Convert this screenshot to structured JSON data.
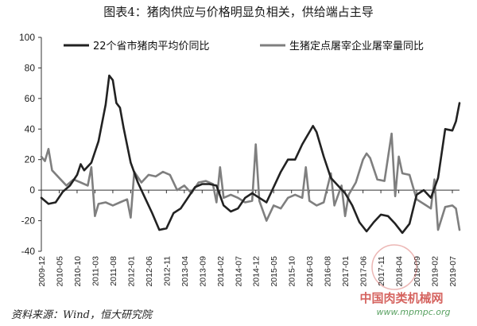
{
  "chart_data": {
    "type": "line",
    "title": "图表4：猪肉供应与价格明显负相关，供给端占主导",
    "ylim": [
      -40,
      100
    ],
    "yticks": [
      -40,
      -20,
      0,
      20,
      40,
      60,
      80,
      100
    ],
    "x_start": "2009-12",
    "x_end": "2019-09",
    "xtick_labels": [
      "2009-12",
      "2010-05",
      "2010-10",
      "2011-03",
      "2011-08",
      "2012-01",
      "2012-06",
      "2012-11",
      "2013-04",
      "2013-09",
      "2014-02",
      "2014-07",
      "2014-12",
      "2015-05",
      "2015-10",
      "2016-03",
      "2016-08",
      "2017-01",
      "2017-06",
      "2017-11",
      "2018-04",
      "2018-09",
      "2019-02",
      "2019-07"
    ],
    "legend_position": "top",
    "grid": false,
    "series": [
      {
        "name": "22个省市猪肉平均价同比",
        "color": "#222222",
        "points": [
          [
            "2009-12",
            -5
          ],
          [
            "2010-02",
            -9
          ],
          [
            "2010-04",
            -8
          ],
          [
            "2010-06",
            -1
          ],
          [
            "2010-08",
            3
          ],
          [
            "2010-10",
            10
          ],
          [
            "2010-11",
            17
          ],
          [
            "2010-12",
            13
          ],
          [
            "2011-02",
            18
          ],
          [
            "2011-04",
            32
          ],
          [
            "2011-06",
            56
          ],
          [
            "2011-07",
            75
          ],
          [
            "2011-08",
            72
          ],
          [
            "2011-09",
            57
          ],
          [
            "2011-10",
            54
          ],
          [
            "2011-11",
            41
          ],
          [
            "2012-01",
            18
          ],
          [
            "2012-03",
            5
          ],
          [
            "2012-05",
            -5
          ],
          [
            "2012-07",
            -15
          ],
          [
            "2012-09",
            -26
          ],
          [
            "2012-11",
            -25
          ],
          [
            "2013-01",
            -15
          ],
          [
            "2013-03",
            -12
          ],
          [
            "2013-05",
            -5
          ],
          [
            "2013-07",
            2
          ],
          [
            "2013-09",
            4
          ],
          [
            "2013-11",
            4
          ],
          [
            "2014-01",
            3
          ],
          [
            "2014-03",
            -10
          ],
          [
            "2014-05",
            -14
          ],
          [
            "2014-07",
            -12
          ],
          [
            "2014-09",
            -5
          ],
          [
            "2014-11",
            -2
          ],
          [
            "2015-01",
            -5
          ],
          [
            "2015-03",
            -8
          ],
          [
            "2015-04",
            -3
          ],
          [
            "2015-05",
            2
          ],
          [
            "2015-07",
            12
          ],
          [
            "2015-09",
            20
          ],
          [
            "2015-11",
            20
          ],
          [
            "2016-01",
            30
          ],
          [
            "2016-03",
            38
          ],
          [
            "2016-04",
            42
          ],
          [
            "2016-05",
            38
          ],
          [
            "2016-07",
            22
          ],
          [
            "2016-09",
            8
          ],
          [
            "2016-11",
            3
          ],
          [
            "2017-01",
            -2
          ],
          [
            "2017-03",
            -10
          ],
          [
            "2017-05",
            -21
          ],
          [
            "2017-07",
            -27
          ],
          [
            "2017-09",
            -21
          ],
          [
            "2017-11",
            -16
          ],
          [
            "2018-01",
            -17
          ],
          [
            "2018-03",
            -22
          ],
          [
            "2018-05",
            -28
          ],
          [
            "2018-07",
            -22
          ],
          [
            "2018-09",
            -3
          ],
          [
            "2018-11",
            0
          ],
          [
            "2019-01",
            -5
          ],
          [
            "2019-03",
            8
          ],
          [
            "2019-05",
            40
          ],
          [
            "2019-07",
            39
          ],
          [
            "2019-08",
            45
          ],
          [
            "2019-09",
            57
          ]
        ]
      },
      {
        "name": "生猪定点屠宰企业屠宰量同比",
        "color": "#7f7f7f",
        "points": [
          [
            "2009-12",
            22
          ],
          [
            "2010-01",
            19
          ],
          [
            "2010-02",
            27
          ],
          [
            "2010-03",
            13
          ],
          [
            "2010-05",
            8
          ],
          [
            "2010-07",
            3
          ],
          [
            "2010-09",
            7
          ],
          [
            "2010-11",
            5
          ],
          [
            "2011-01",
            3
          ],
          [
            "2011-02",
            15
          ],
          [
            "2011-03",
            -17
          ],
          [
            "2011-04",
            -9
          ],
          [
            "2011-06",
            -8
          ],
          [
            "2011-08",
            -10
          ],
          [
            "2011-10",
            -8
          ],
          [
            "2011-12",
            -6
          ],
          [
            "2012-01",
            -18
          ],
          [
            "2012-02",
            12
          ],
          [
            "2012-04",
            5
          ],
          [
            "2012-06",
            10
          ],
          [
            "2012-08",
            9
          ],
          [
            "2012-10",
            12
          ],
          [
            "2012-12",
            10
          ],
          [
            "2013-02",
            0
          ],
          [
            "2013-04",
            3
          ],
          [
            "2013-06",
            -2
          ],
          [
            "2013-08",
            5
          ],
          [
            "2013-10",
            6
          ],
          [
            "2013-12",
            4
          ],
          [
            "2014-01",
            -8
          ],
          [
            "2014-02",
            15
          ],
          [
            "2014-03",
            -5
          ],
          [
            "2014-05",
            -3
          ],
          [
            "2014-07",
            -5
          ],
          [
            "2014-09",
            -8
          ],
          [
            "2014-11",
            -7
          ],
          [
            "2014-12",
            30
          ],
          [
            "2015-01",
            -7
          ],
          [
            "2015-03",
            -20
          ],
          [
            "2015-05",
            -10
          ],
          [
            "2015-07",
            -12
          ],
          [
            "2015-09",
            -5
          ],
          [
            "2015-11",
            -3
          ],
          [
            "2016-01",
            -5
          ],
          [
            "2016-02",
            15
          ],
          [
            "2016-03",
            -7
          ],
          [
            "2016-05",
            -10
          ],
          [
            "2016-07",
            -8
          ],
          [
            "2016-09",
            11
          ],
          [
            "2016-10",
            -10
          ],
          [
            "2016-12",
            3
          ],
          [
            "2017-01",
            -17
          ],
          [
            "2017-02",
            -3
          ],
          [
            "2017-04",
            5
          ],
          [
            "2017-06",
            20
          ],
          [
            "2017-07",
            24
          ],
          [
            "2017-08",
            21
          ],
          [
            "2017-10",
            7
          ],
          [
            "2017-12",
            6
          ],
          [
            "2018-02",
            37
          ],
          [
            "2018-03",
            -4
          ],
          [
            "2018-04",
            22
          ],
          [
            "2018-05",
            11
          ],
          [
            "2018-07",
            10
          ],
          [
            "2018-09",
            -6
          ],
          [
            "2018-11",
            -9
          ],
          [
            "2019-01",
            -12
          ],
          [
            "2019-02",
            7
          ],
          [
            "2019-03",
            -26
          ],
          [
            "2019-05",
            -11
          ],
          [
            "2019-07",
            -10
          ],
          [
            "2019-08",
            -12
          ],
          [
            "2019-09",
            -26
          ]
        ]
      }
    ],
    "source_note": "资料来源：Wind，恒大研究院"
  },
  "watermark": {
    "text": "中国肉类机械网",
    "url": "www.mpmpc.org"
  }
}
